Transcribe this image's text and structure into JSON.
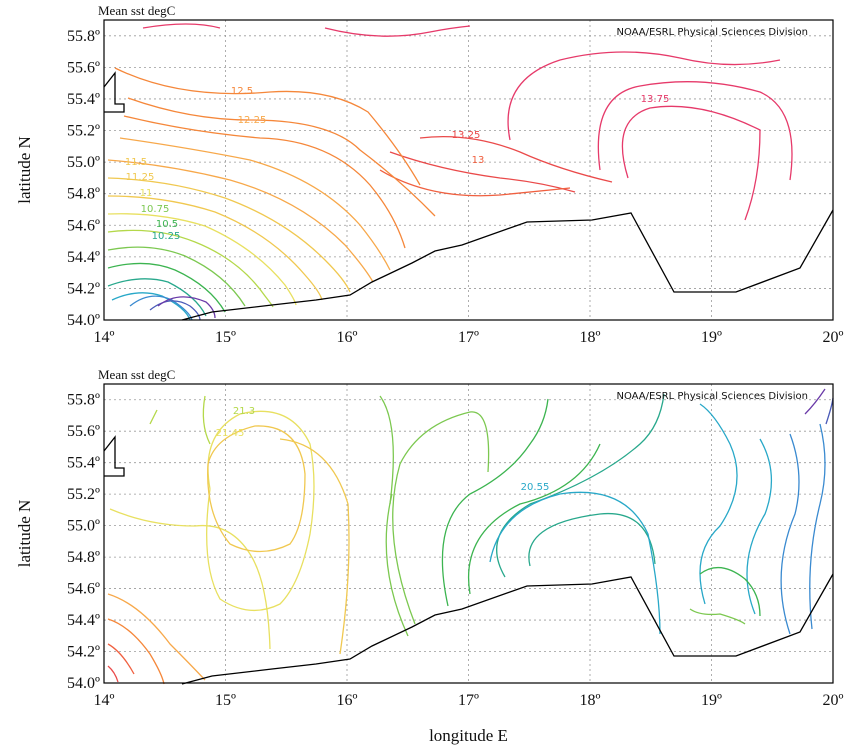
{
  "panels": [
    {
      "title": "Mean sst degC",
      "credit": "NOAA/ESRL Physical Sciences Division",
      "ylabel": "latitude N",
      "contour_labels": [
        "13.75",
        "13.25",
        "13",
        "12.5",
        "12.25",
        "11.5",
        "11.25",
        "11",
        "10.75",
        "10.5",
        "10.25"
      ]
    },
    {
      "title": "Mean sst degC",
      "credit": "NOAA/ESRL Physical Sciences Division",
      "ylabel": "latitude N",
      "contour_labels": [
        "21.3",
        "21.45",
        "20.55"
      ]
    }
  ],
  "xlabel": "longitude E",
  "x_ticks": [
    "14º",
    "15º",
    "16º",
    "17º",
    "18º",
    "19º",
    "20º"
  ],
  "y_ticks": [
    "55.8º",
    "55.6º",
    "55.4º",
    "55.2º",
    "55.0º",
    "54.8º",
    "54.6º",
    "54.4º",
    "54.2º",
    "54.0º"
  ],
  "colors": {
    "warm": [
      "#e63a6a",
      "#ea4a4a",
      "#f06040",
      "#f5873a",
      "#f7a84a",
      "#f0c850",
      "#e8e060"
    ],
    "cool": [
      "#b4d84a",
      "#7cc850",
      "#3cb450",
      "#28a88c",
      "#28a8c8",
      "#3a8ad0",
      "#4a5ab8",
      "#6a3aa8"
    ]
  }
}
